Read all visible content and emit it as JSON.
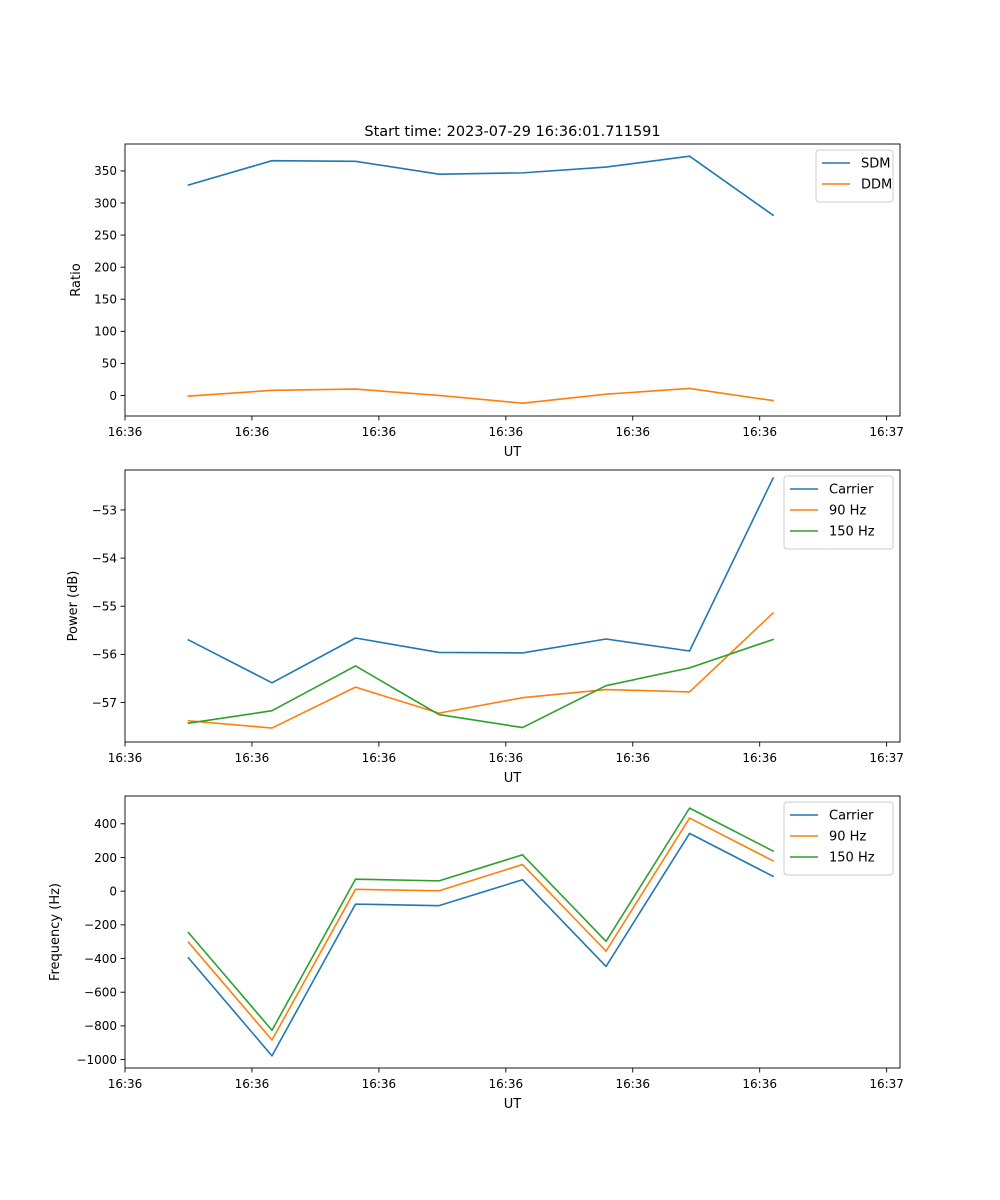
{
  "title": "Start time: 2023-07-29 16:36:01.711591",
  "colors": {
    "blue": "#1f77b4",
    "orange": "#ff7f0e",
    "green": "#2ca02c"
  },
  "chart_data": [
    {
      "type": "line",
      "title": "Start time: 2023-07-29 16:36:01.711591",
      "xlabel": "UT",
      "ylabel": "Ratio",
      "x": [
        0,
        1,
        2,
        3,
        4,
        5,
        6,
        7
      ],
      "xlim": [
        -0.76,
        8.52
      ],
      "x_ticks": [
        -0.76,
        0.76,
        2.28,
        3.8,
        5.32,
        6.84,
        8.36
      ],
      "x_tick_labels": [
        "16:36",
        "16:36",
        "16:36",
        "16:36",
        "16:36",
        "16:36",
        "16:37"
      ],
      "ylim": [
        -32,
        392
      ],
      "y_ticks": [
        0,
        50,
        100,
        150,
        200,
        250,
        300,
        350
      ],
      "y_tick_labels": [
        "0",
        "50",
        "100",
        "150",
        "200",
        "250",
        "300",
        "350"
      ],
      "legend_position": "top-right",
      "series": [
        {
          "name": "SDM",
          "color": "#1f77b4",
          "values": [
            328,
            366,
            365,
            345,
            347,
            356,
            373,
            281
          ]
        },
        {
          "name": "DDM",
          "color": "#ff7f0e",
          "values": [
            -1,
            8,
            10,
            0,
            -12,
            2,
            11,
            -8
          ]
        }
      ]
    },
    {
      "type": "line",
      "title": "",
      "xlabel": "UT",
      "ylabel": "Power (dB)",
      "x": [
        0,
        1,
        2,
        3,
        4,
        5,
        6,
        7
      ],
      "xlim": [
        -0.76,
        8.52
      ],
      "x_ticks": [
        -0.76,
        0.76,
        2.28,
        3.8,
        5.32,
        6.84,
        8.36
      ],
      "x_tick_labels": [
        "16:36",
        "16:36",
        "16:36",
        "16:36",
        "16:36",
        "16:36",
        "16:37"
      ],
      "ylim": [
        -57.82,
        -52.17
      ],
      "y_ticks": [
        -57,
        -56,
        -55,
        -54,
        -53
      ],
      "y_tick_labels": [
        "−57",
        "−56",
        "−55",
        "−54",
        "−53"
      ],
      "legend_position": "top-right",
      "series": [
        {
          "name": "Carrier",
          "color": "#1f77b4",
          "values": [
            -55.7,
            -56.59,
            -55.66,
            -55.96,
            -55.97,
            -55.68,
            -55.93,
            -52.34
          ]
        },
        {
          "name": "90 Hz",
          "color": "#ff7f0e",
          "values": [
            -57.38,
            -57.53,
            -56.68,
            -57.22,
            -56.9,
            -56.73,
            -56.78,
            -55.14
          ]
        },
        {
          "name": "150 Hz",
          "color": "#2ca02c",
          "values": [
            -57.43,
            -57.17,
            -56.24,
            -57.25,
            -57.52,
            -56.65,
            -56.28,
            -55.69
          ]
        }
      ]
    },
    {
      "type": "line",
      "title": "",
      "xlabel": "UT",
      "ylabel": "Frequency (Hz)",
      "x": [
        0,
        1,
        2,
        3,
        4,
        5,
        6,
        7
      ],
      "xlim": [
        -0.76,
        8.52
      ],
      "x_ticks": [
        -0.76,
        0.76,
        2.28,
        3.8,
        5.32,
        6.84,
        8.36
      ],
      "x_tick_labels": [
        "16:36",
        "16:36",
        "16:36",
        "16:36",
        "16:36",
        "16:36",
        "16:37"
      ],
      "ylim": [
        -1050,
        565
      ],
      "y_ticks": [
        -1000,
        -800,
        -600,
        -400,
        -200,
        0,
        200,
        400
      ],
      "y_tick_labels": [
        "−1000",
        "−800",
        "−600",
        "−400",
        "−200",
        "0",
        "200",
        "400"
      ],
      "legend_position": "top-right",
      "series": [
        {
          "name": "Carrier",
          "color": "#1f77b4",
          "values": [
            -396,
            -978,
            -77,
            -86,
            68,
            -447,
            343,
            88
          ]
        },
        {
          "name": "90 Hz",
          "color": "#ff7f0e",
          "values": [
            -303,
            -884,
            11,
            2,
            158,
            -356,
            434,
            180
          ]
        },
        {
          "name": "150 Hz",
          "color": "#2ca02c",
          "values": [
            -246,
            -826,
            71,
            61,
            216,
            -298,
            493,
            238
          ]
        }
      ]
    }
  ]
}
